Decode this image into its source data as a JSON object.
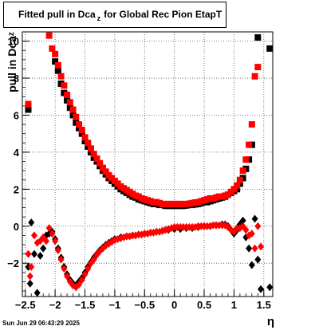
{
  "title_parts": [
    "Fitted pull in Dca",
    "z",
    "for Global Rec Pion EtapT"
  ],
  "timestamp": "Sun Jun 29 06:43:29 2025",
  "chart_data": {
    "type": "scatter",
    "title": "Fitted pull in Dca z for Global Rec Pion EtapT",
    "xlabel": "η",
    "ylabel_parts": [
      "pull in Dca",
      "z"
    ],
    "xlim": [
      -2.55,
      1.65
    ],
    "ylim": [
      -3.8,
      10.5
    ],
    "x_ticks": [
      -2.5,
      -2,
      -1.5,
      -1,
      -0.5,
      0,
      0.5,
      1,
      1.5
    ],
    "x_tick_labels": [
      "−2.5",
      "−2",
      "−1.5",
      "−1",
      "−0.5",
      "0",
      "0.5",
      "1",
      "1.5"
    ],
    "y_ticks": [
      -2,
      0,
      2,
      4,
      6,
      8,
      10
    ],
    "y_tick_labels": [
      "−2",
      "0",
      "2",
      "4",
      "6",
      "8",
      "10"
    ],
    "grid": true,
    "series": [
      {
        "color": "#000000",
        "marker": "square",
        "points": [
          [
            -2.45,
            6.3
          ],
          [
            -2.0,
            8.9
          ],
          [
            -1.95,
            8.4
          ],
          [
            -1.9,
            7.7
          ],
          [
            -1.85,
            7.2
          ],
          [
            -1.8,
            6.8
          ],
          [
            -1.75,
            6.4
          ],
          [
            -1.7,
            6.0
          ],
          [
            -1.65,
            5.6
          ],
          [
            -1.6,
            5.3
          ],
          [
            -1.55,
            5.0
          ],
          [
            -1.5,
            4.6
          ],
          [
            -1.45,
            4.3
          ],
          [
            -1.4,
            4.0
          ],
          [
            -1.35,
            3.7
          ],
          [
            -1.3,
            3.5
          ],
          [
            -1.25,
            3.25
          ],
          [
            -1.2,
            3.0
          ],
          [
            -1.15,
            2.8
          ],
          [
            -1.1,
            2.6
          ],
          [
            -1.05,
            2.45
          ],
          [
            -1.0,
            2.3
          ],
          [
            -0.95,
            2.15
          ],
          [
            -0.9,
            2.0
          ],
          [
            -0.85,
            1.9
          ],
          [
            -0.8,
            1.8
          ],
          [
            -0.75,
            1.7
          ],
          [
            -0.7,
            1.6
          ],
          [
            -0.65,
            1.55
          ],
          [
            -0.6,
            1.45
          ],
          [
            -0.55,
            1.4
          ],
          [
            -0.5,
            1.35
          ],
          [
            -0.45,
            1.3
          ],
          [
            -0.4,
            1.25
          ],
          [
            -0.35,
            1.2
          ],
          [
            -0.3,
            1.2
          ],
          [
            -0.25,
            1.15
          ],
          [
            -0.2,
            1.15
          ],
          [
            -0.15,
            1.1
          ],
          [
            -0.1,
            1.1
          ],
          [
            -0.05,
            1.1
          ],
          [
            0.0,
            1.1
          ],
          [
            0.05,
            1.1
          ],
          [
            0.1,
            1.1
          ],
          [
            0.15,
            1.1
          ],
          [
            0.2,
            1.12
          ],
          [
            0.25,
            1.15
          ],
          [
            0.3,
            1.15
          ],
          [
            0.35,
            1.18
          ],
          [
            0.4,
            1.2
          ],
          [
            0.45,
            1.25
          ],
          [
            0.5,
            1.3
          ],
          [
            0.55,
            1.3
          ],
          [
            0.6,
            1.35
          ],
          [
            0.65,
            1.4
          ],
          [
            0.7,
            1.45
          ],
          [
            0.75,
            1.5
          ],
          [
            0.8,
            1.55
          ],
          [
            0.85,
            1.6
          ],
          [
            0.9,
            1.7
          ],
          [
            0.95,
            1.8
          ],
          [
            1.0,
            1.9
          ],
          [
            1.05,
            2.0
          ],
          [
            1.1,
            2.3
          ],
          [
            1.15,
            2.6
          ],
          [
            1.2,
            3.1
          ],
          [
            1.25,
            3.6
          ],
          [
            1.3,
            4.4
          ],
          [
            1.4,
            10.2
          ],
          [
            1.6,
            9.6
          ]
        ]
      },
      {
        "color": "#ff0000",
        "marker": "square",
        "points": [
          [
            -2.45,
            6.6
          ],
          [
            -2.1,
            10.3
          ],
          [
            -2.05,
            9.6
          ],
          [
            -2.0,
            9.3
          ],
          [
            -1.95,
            8.7
          ],
          [
            -1.9,
            8.1
          ],
          [
            -1.85,
            7.6
          ],
          [
            -1.8,
            7.1
          ],
          [
            -1.75,
            6.7
          ],
          [
            -1.7,
            6.3
          ],
          [
            -1.65,
            5.9
          ],
          [
            -1.6,
            5.5
          ],
          [
            -1.55,
            5.2
          ],
          [
            -1.5,
            4.8
          ],
          [
            -1.45,
            4.5
          ],
          [
            -1.4,
            4.2
          ],
          [
            -1.35,
            3.9
          ],
          [
            -1.3,
            3.65
          ],
          [
            -1.25,
            3.4
          ],
          [
            -1.2,
            3.15
          ],
          [
            -1.15,
            2.95
          ],
          [
            -1.1,
            2.75
          ],
          [
            -1.05,
            2.6
          ],
          [
            -1.0,
            2.45
          ],
          [
            -0.95,
            2.3
          ],
          [
            -0.9,
            2.15
          ],
          [
            -0.85,
            2.05
          ],
          [
            -0.8,
            1.95
          ],
          [
            -0.75,
            1.85
          ],
          [
            -0.7,
            1.75
          ],
          [
            -0.65,
            1.65
          ],
          [
            -0.6,
            1.6
          ],
          [
            -0.55,
            1.5
          ],
          [
            -0.5,
            1.45
          ],
          [
            -0.45,
            1.4
          ],
          [
            -0.4,
            1.35
          ],
          [
            -0.35,
            1.3
          ],
          [
            -0.3,
            1.3
          ],
          [
            -0.25,
            1.25
          ],
          [
            -0.2,
            1.2
          ],
          [
            -0.15,
            1.2
          ],
          [
            -0.1,
            1.2
          ],
          [
            -0.05,
            1.2
          ],
          [
            0.0,
            1.2
          ],
          [
            0.05,
            1.2
          ],
          [
            0.1,
            1.2
          ],
          [
            0.15,
            1.2
          ],
          [
            0.2,
            1.2
          ],
          [
            0.25,
            1.22
          ],
          [
            0.3,
            1.25
          ],
          [
            0.35,
            1.28
          ],
          [
            0.4,
            1.3
          ],
          [
            0.45,
            1.35
          ],
          [
            0.5,
            1.4
          ],
          [
            0.55,
            1.45
          ],
          [
            0.6,
            1.5
          ],
          [
            0.65,
            1.5
          ],
          [
            0.7,
            1.55
          ],
          [
            0.75,
            1.6
          ],
          [
            0.8,
            1.6
          ],
          [
            0.85,
            1.65
          ],
          [
            0.9,
            1.7
          ],
          [
            0.95,
            1.85
          ],
          [
            1.0,
            2.0
          ],
          [
            1.05,
            2.2
          ],
          [
            1.1,
            2.5
          ],
          [
            1.15,
            3.0
          ],
          [
            1.2,
            3.6
          ],
          [
            1.25,
            4.4
          ],
          [
            1.3,
            5.5
          ],
          [
            1.35,
            8.1
          ],
          [
            1.4,
            8.6
          ]
        ]
      },
      {
        "color": "#000000",
        "marker": "diamond",
        "points": [
          [
            -2.45,
            -2.2
          ],
          [
            -2.42,
            -3.1
          ],
          [
            -2.4,
            0.2
          ],
          [
            -2.35,
            -1.5
          ],
          [
            -2.3,
            -3.6
          ],
          [
            -2.25,
            -1.6
          ],
          [
            -2.2,
            -1.2
          ],
          [
            -2.15,
            -0.5
          ],
          [
            -2.1,
            -0.4
          ],
          [
            -2.05,
            -0.3
          ],
          [
            -2.0,
            -0.7
          ],
          [
            -1.95,
            -1.2
          ],
          [
            -1.9,
            -1.7
          ],
          [
            -1.85,
            -2.2
          ],
          [
            -1.8,
            -2.6
          ],
          [
            -1.75,
            -2.9
          ],
          [
            -1.7,
            -3.1
          ],
          [
            -1.65,
            -3.2
          ],
          [
            -1.6,
            -3.0
          ],
          [
            -1.55,
            -2.8
          ],
          [
            -1.5,
            -2.5
          ],
          [
            -1.45,
            -2.2
          ],
          [
            -1.4,
            -1.95
          ],
          [
            -1.35,
            -1.7
          ],
          [
            -1.3,
            -1.5
          ],
          [
            -1.25,
            -1.3
          ],
          [
            -1.2,
            -1.15
          ],
          [
            -1.15,
            -1.0
          ],
          [
            -1.1,
            -0.9
          ],
          [
            -1.05,
            -0.8
          ],
          [
            -1.0,
            -0.7
          ],
          [
            -0.9,
            -0.6
          ],
          [
            -0.8,
            -0.55
          ],
          [
            -0.7,
            -0.5
          ],
          [
            -0.6,
            -0.45
          ],
          [
            -0.5,
            -0.4
          ],
          [
            -0.4,
            -0.35
          ],
          [
            -0.3,
            -0.3
          ],
          [
            -0.2,
            -0.25
          ],
          [
            -0.1,
            -0.2
          ],
          [
            0.0,
            -0.15
          ],
          [
            0.1,
            -0.15
          ],
          [
            0.2,
            -0.1
          ],
          [
            0.3,
            -0.1
          ],
          [
            0.4,
            -0.05
          ],
          [
            0.5,
            0.0
          ],
          [
            0.6,
            0.0
          ],
          [
            0.7,
            0.05
          ],
          [
            0.8,
            0.1
          ],
          [
            0.85,
            0.1
          ],
          [
            0.9,
            0.0
          ],
          [
            0.95,
            -0.2
          ],
          [
            1.0,
            -0.4
          ],
          [
            1.05,
            -0.2
          ],
          [
            1.1,
            0.1
          ],
          [
            1.15,
            0.3
          ],
          [
            1.2,
            -0.6
          ],
          [
            1.25,
            -1.2
          ],
          [
            1.3,
            -2.1
          ],
          [
            1.35,
            0.4
          ],
          [
            1.4,
            -1.8
          ],
          [
            1.45,
            -3.4
          ],
          [
            1.6,
            -3.3
          ]
        ]
      },
      {
        "color": "#ff0000",
        "marker": "diamond",
        "points": [
          [
            -2.45,
            -1.5
          ],
          [
            -2.42,
            -2.7
          ],
          [
            -2.4,
            -2.2
          ],
          [
            -2.35,
            -0.5
          ],
          [
            -2.3,
            -0.9
          ],
          [
            -2.25,
            -0.8
          ],
          [
            -2.2,
            -0.6
          ],
          [
            -2.15,
            -0.8
          ],
          [
            -2.1,
            -0.1
          ],
          [
            -2.05,
            -0.4
          ],
          [
            -2.0,
            -0.8
          ],
          [
            -1.95,
            -1.3
          ],
          [
            -1.9,
            -1.8
          ],
          [
            -1.85,
            -2.3
          ],
          [
            -1.8,
            -2.7
          ],
          [
            -1.75,
            -3.0
          ],
          [
            -1.7,
            -3.2
          ],
          [
            -1.65,
            -3.3
          ],
          [
            -1.6,
            -3.15
          ],
          [
            -1.55,
            -2.9
          ],
          [
            -1.5,
            -2.6
          ],
          [
            -1.45,
            -2.3
          ],
          [
            -1.4,
            -2.0
          ],
          [
            -1.35,
            -1.8
          ],
          [
            -1.3,
            -1.55
          ],
          [
            -1.25,
            -1.35
          ],
          [
            -1.2,
            -1.2
          ],
          [
            -1.15,
            -1.05
          ],
          [
            -1.1,
            -0.95
          ],
          [
            -1.05,
            -0.85
          ],
          [
            -1.0,
            -0.75
          ],
          [
            -0.95,
            -0.7
          ],
          [
            -0.9,
            -0.65
          ],
          [
            -0.85,
            -0.6
          ],
          [
            -0.8,
            -0.55
          ],
          [
            -0.75,
            -0.55
          ],
          [
            -0.7,
            -0.5
          ],
          [
            -0.65,
            -0.5
          ],
          [
            -0.6,
            -0.45
          ],
          [
            -0.55,
            -0.45
          ],
          [
            -0.5,
            -0.4
          ],
          [
            -0.45,
            -0.4
          ],
          [
            -0.4,
            -0.35
          ],
          [
            -0.35,
            -0.35
          ],
          [
            -0.3,
            -0.3
          ],
          [
            -0.25,
            -0.3
          ],
          [
            -0.2,
            -0.25
          ],
          [
            -0.15,
            -0.2
          ],
          [
            -0.1,
            -0.15
          ],
          [
            -0.05,
            -0.1
          ],
          [
            0.0,
            -0.05
          ],
          [
            0.05,
            -0.05
          ],
          [
            0.1,
            -0.05
          ],
          [
            0.15,
            -0.05
          ],
          [
            0.2,
            -0.05
          ],
          [
            0.25,
            -0.05
          ],
          [
            0.3,
            -0.05
          ],
          [
            0.35,
            -0.05
          ],
          [
            0.4,
            0.0
          ],
          [
            0.45,
            0.0
          ],
          [
            0.5,
            0.0
          ],
          [
            0.55,
            0.0
          ],
          [
            0.6,
            0.0
          ],
          [
            0.65,
            0.05
          ],
          [
            0.7,
            0.05
          ],
          [
            0.75,
            0.05
          ],
          [
            0.8,
            0.05
          ],
          [
            0.85,
            0.05
          ],
          [
            0.9,
            -0.05
          ],
          [
            0.95,
            -0.2
          ],
          [
            1.0,
            -0.3
          ],
          [
            1.05,
            -0.1
          ],
          [
            1.1,
            -0.1
          ],
          [
            1.15,
            0.0
          ],
          [
            1.2,
            -0.2
          ],
          [
            1.25,
            -0.5
          ],
          [
            1.3,
            -0.4
          ],
          [
            1.35,
            -1.2
          ],
          [
            1.4,
            0.0
          ],
          [
            1.45,
            -1.1
          ]
        ]
      }
    ]
  }
}
